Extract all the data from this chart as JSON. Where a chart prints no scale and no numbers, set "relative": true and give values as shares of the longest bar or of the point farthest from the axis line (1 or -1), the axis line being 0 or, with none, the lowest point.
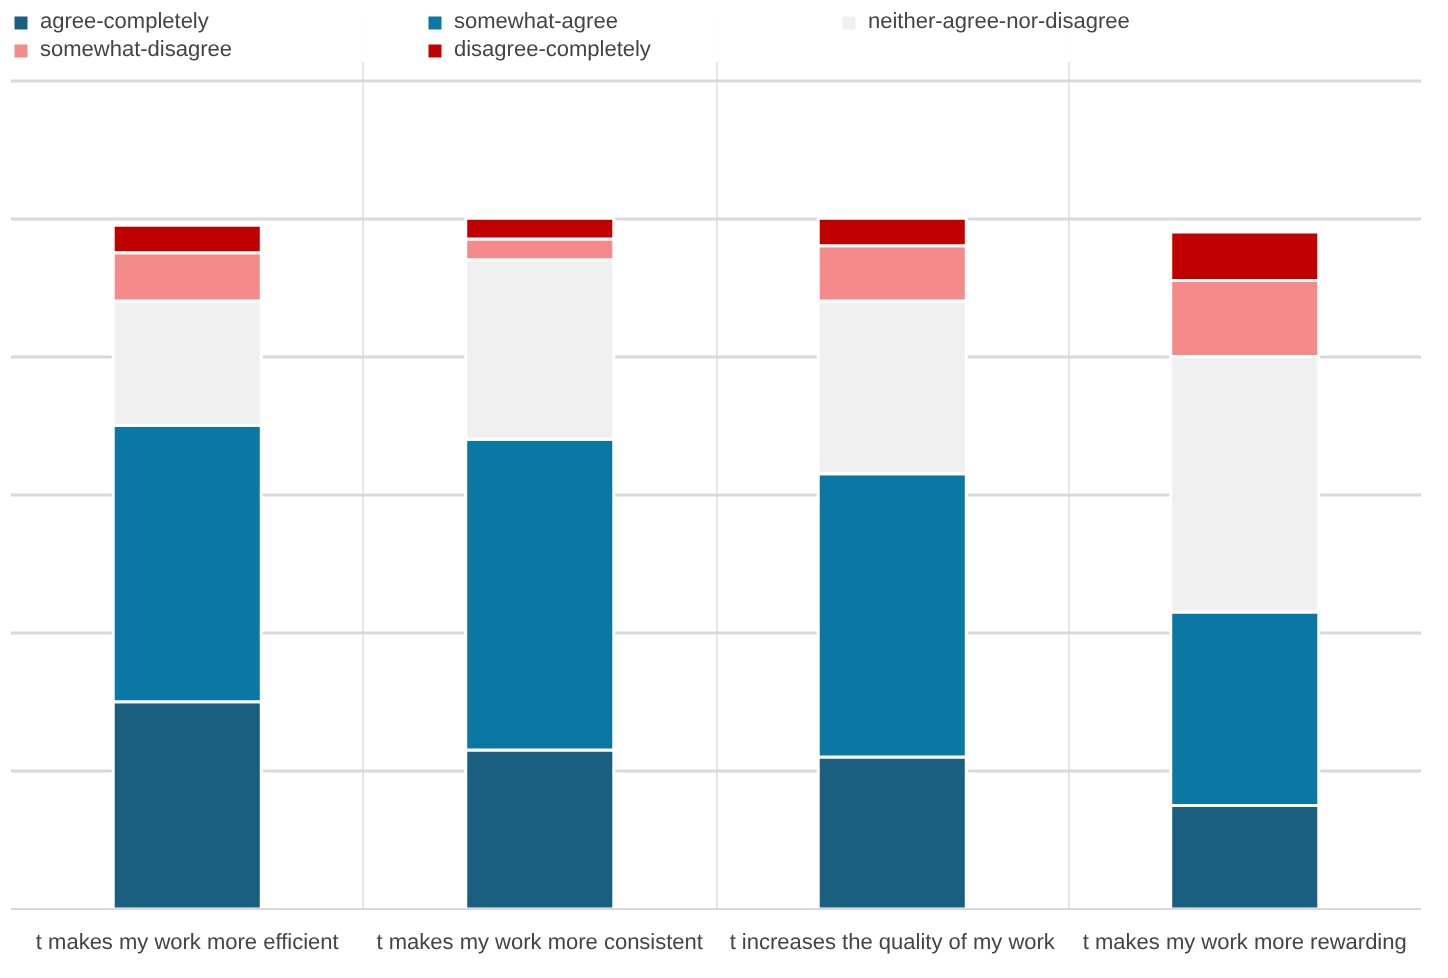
{
  "chart_data": {
    "type": "bar",
    "stacked": true,
    "relative": true,
    "grid": "y",
    "legend": "top",
    "categories": [
      "t makes my work more efficient",
      "t makes my work more consistent",
      "t increases the quality of my work",
      "t makes my work more rewarding"
    ],
    "series": [
      {
        "name": "agree-completely",
        "color": "#1a5e80",
        "values": [
          0.3,
          0.23,
          0.22,
          0.15
        ]
      },
      {
        "name": "somewhat-agree",
        "color": "#0b77a3",
        "values": [
          0.4,
          0.45,
          0.41,
          0.28
        ]
      },
      {
        "name": "neither-agree-nor-disagree",
        "color": "#f0f0f0",
        "values": [
          0.18,
          0.26,
          0.25,
          0.37
        ]
      },
      {
        "name": "somewhat-disagree",
        "color": "#f48a8a",
        "values": [
          0.07,
          0.03,
          0.08,
          0.11
        ]
      },
      {
        "name": "disagree-completely",
        "color": "#c00000",
        "values": [
          0.04,
          0.03,
          0.04,
          0.07
        ]
      }
    ]
  }
}
